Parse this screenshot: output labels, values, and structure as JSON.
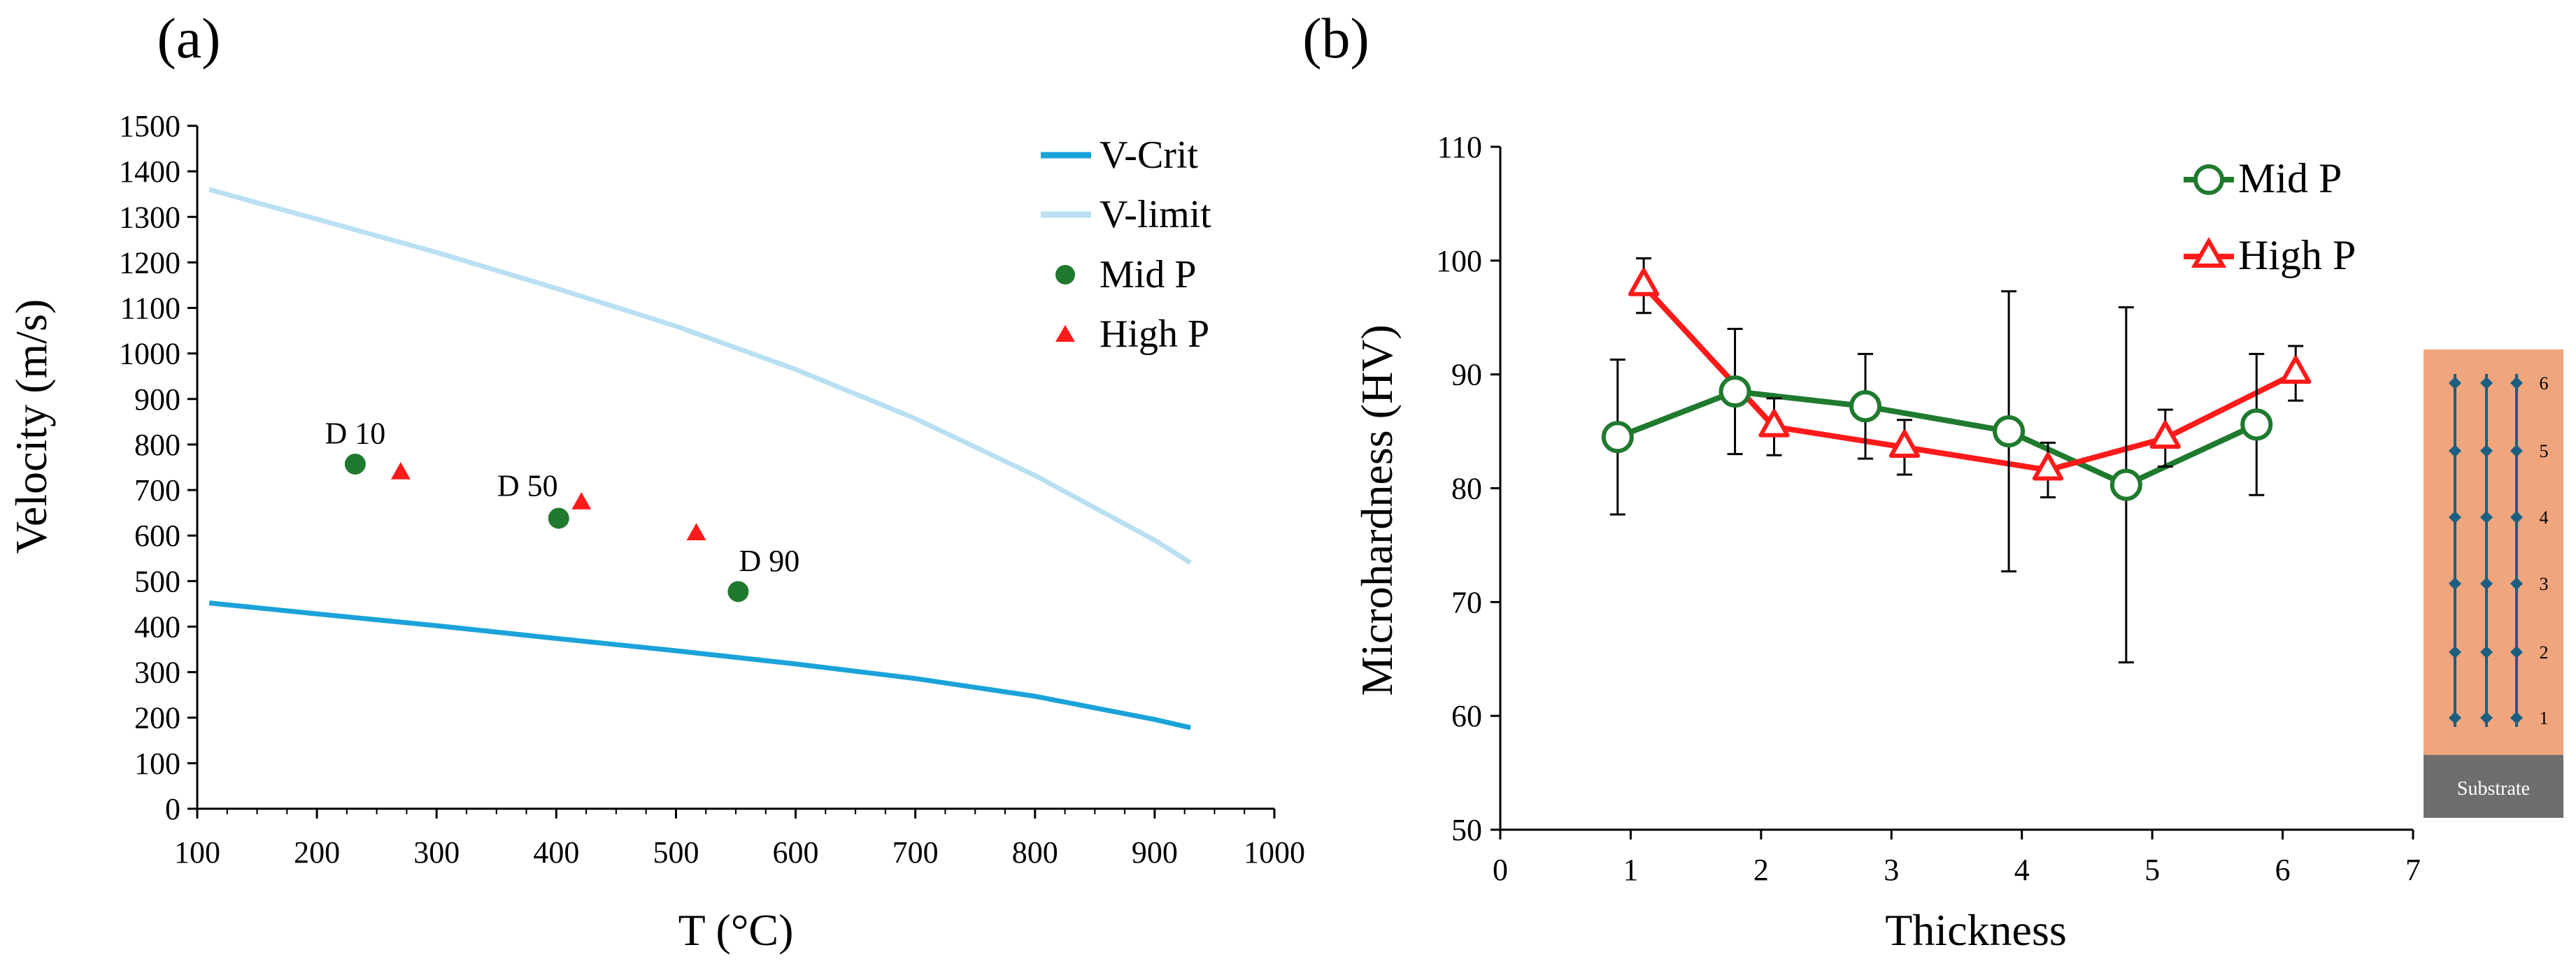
{
  "colors": {
    "v_crit": "#1aa3d9",
    "v_limit": "#b9e0f2",
    "mid_p": "#1f7a2e",
    "high_p": "#ff1a1a",
    "substrate": "#6e6e6e",
    "coating": "#f0a57c",
    "grid_line": "#1a5e82"
  },
  "chart_data": [
    {
      "id": "a",
      "panel_label": "(a)",
      "type": "line",
      "xlabel": "T (°C)",
      "ylabel": "Velocity (m/s)",
      "xlim": [
        100,
        1000
      ],
      "ylim": [
        0,
        1500
      ],
      "x_ticks": [
        100,
        200,
        300,
        400,
        500,
        600,
        700,
        800,
        900,
        1000
      ],
      "y_ticks": [
        0,
        100,
        200,
        300,
        400,
        500,
        600,
        700,
        800,
        900,
        1000,
        1100,
        1200,
        1300,
        1400,
        1500
      ],
      "legend_position": "top-right",
      "legend": [
        "V-Crit",
        "V-limit",
        "Mid P",
        "High P"
      ],
      "series": [
        {
          "name": "V-Crit",
          "kind": "line",
          "x": [
            110,
            200,
            300,
            400,
            500,
            600,
            700,
            800,
            900,
            930
          ],
          "y": [
            452,
            428,
            402,
            374,
            347,
            318,
            286,
            247,
            196,
            178
          ]
        },
        {
          "name": "V-limit",
          "kind": "line",
          "x": [
            110,
            200,
            300,
            400,
            500,
            600,
            700,
            800,
            900,
            930
          ],
          "y": [
            1360,
            1295,
            1222,
            1143,
            1060,
            965,
            857,
            732,
            590,
            540
          ]
        },
        {
          "name": "Mid P",
          "kind": "scatter",
          "marker": "circle",
          "x": [
            232,
            402,
            552
          ],
          "y": [
            757,
            638,
            477
          ]
        },
        {
          "name": "High P",
          "kind": "scatter",
          "marker": "triangle",
          "x": [
            270,
            421,
            517
          ],
          "y": [
            737,
            671,
            603
          ]
        }
      ],
      "annotations": [
        {
          "text": "D 10",
          "x": 232,
          "y": 825
        },
        {
          "text": "D 50",
          "x": 376,
          "y": 710
        },
        {
          "text": "D 90",
          "x": 578,
          "y": 545
        }
      ]
    },
    {
      "id": "b",
      "panel_label": "(b)",
      "type": "line",
      "xlabel": "Thickness",
      "ylabel": "Microhardness (HV)",
      "xlim": [
        0,
        7
      ],
      "ylim": [
        50,
        110
      ],
      "x_ticks": [
        0,
        1,
        2,
        3,
        4,
        5,
        6,
        7
      ],
      "y_ticks": [
        50,
        60,
        70,
        80,
        90,
        100,
        110
      ],
      "legend_position": "top-right",
      "legend": [
        "Mid P",
        "High P"
      ],
      "series": [
        {
          "name": "Mid P",
          "marker": "open-circle",
          "x": [
            0.9,
            1.8,
            2.8,
            3.9,
            4.8,
            5.8
          ],
          "y": [
            84.5,
            88.5,
            87.2,
            85.0,
            80.3,
            85.6
          ],
          "err": [
            6.8,
            5.5,
            4.6,
            12.3,
            15.6,
            6.2
          ]
        },
        {
          "name": "High P",
          "marker": "open-triangle",
          "x": [
            1.1,
            2.1,
            3.1,
            4.2,
            5.1,
            6.1
          ],
          "y": [
            97.8,
            85.4,
            83.6,
            81.6,
            84.4,
            90.1
          ],
          "err": [
            2.4,
            2.5,
            2.4,
            2.4,
            2.5,
            2.4
          ]
        }
      ]
    }
  ],
  "inset": {
    "substrate_label": "Substrate",
    "rows": [
      "1",
      "2",
      "3",
      "4",
      "5",
      "6"
    ]
  }
}
